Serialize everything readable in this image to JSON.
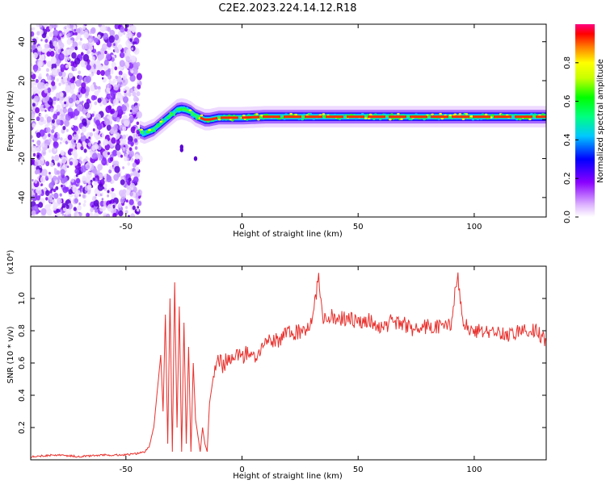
{
  "title": "C2E2.2023.224.14.12.R18",
  "colors": {
    "snr_line": "#e8302c",
    "ridge": "#ff2a00"
  },
  "chart_data": [
    {
      "type": "heatmap",
      "xlabel": "Height of straight line (km)",
      "ylabel": "Frequency (Hz)",
      "xlim": [
        -91,
        131
      ],
      "ylim": [
        -50,
        49
      ],
      "x_ticks": [
        -50,
        0,
        50,
        100
      ],
      "y_ticks": [
        -40,
        -20,
        0,
        20,
        40
      ],
      "x_tick_labels": [
        "-50",
        "0",
        "50",
        "100"
      ],
      "y_tick_labels": [
        "-40",
        "-20",
        "0",
        "20",
        "40"
      ],
      "colorbar": {
        "label": "Normalized spectral amplitude",
        "range": [
          0,
          1
        ],
        "ticks": [
          0.0,
          0.2,
          0.4,
          0.6,
          0.8
        ],
        "tick_labels": [
          "0.0",
          "0.2",
          "0.4",
          "0.6",
          "0.8"
        ]
      },
      "noise_region_x": [
        -91,
        -44
      ],
      "ridge": {
        "x": [
          -44,
          -42,
          -40,
          -38,
          -36,
          -34,
          -32,
          -30,
          -28,
          -26,
          -24,
          -22,
          -20,
          -18,
          -16,
          -14,
          -12,
          -10,
          -5,
          0,
          10,
          20,
          30,
          40,
          50,
          60,
          70,
          80,
          90,
          100,
          110,
          120,
          131
        ],
        "y": [
          -6,
          -7,
          -6,
          -5,
          -3,
          -1,
          1,
          3,
          5,
          5.5,
          5,
          4,
          2,
          1,
          0,
          0,
          0.5,
          1,
          1,
          1,
          1.5,
          1.5,
          1.5,
          1.5,
          1.5,
          1.5,
          1.5,
          1.5,
          1.5,
          1.5,
          1.5,
          1.5,
          1.5
        ]
      },
      "grid": false
    },
    {
      "type": "line",
      "xlabel": "Height of straight line (km)",
      "ylabel": "SNR (10 * v/v)",
      "y_multiplier": "(x10⁴)",
      "xlim": [
        -91,
        131
      ],
      "ylim": [
        0,
        1.2
      ],
      "x_ticks": [
        -50,
        0,
        50,
        100
      ],
      "y_ticks": [
        0.2,
        0.4,
        0.6,
        0.8,
        1.0
      ],
      "x_tick_labels": [
        "-50",
        "0",
        "50",
        "100"
      ],
      "y_tick_labels": [
        "0.2",
        "0.4",
        "0.6",
        "0.8",
        "1.0"
      ],
      "series": [
        {
          "x": [
            -91,
            -80,
            -70,
            -60,
            -50,
            -45,
            -42,
            -40,
            -38,
            -36,
            -35,
            -34,
            -33,
            -32,
            -31,
            -30,
            -29,
            -28,
            -27,
            -26,
            -25,
            -24,
            -23,
            -22,
            -21,
            -20,
            -19,
            -18,
            -17,
            -16,
            -15,
            -14,
            -12,
            -10,
            -8,
            -6,
            -4,
            -2,
            0,
            3,
            6,
            10,
            15,
            20,
            25,
            30,
            33,
            35,
            38,
            40,
            45,
            50,
            55,
            60,
            65,
            70,
            75,
            80,
            85,
            90,
            93,
            95,
            100,
            105,
            110,
            115,
            120,
            125,
            128,
            131
          ],
          "y": [
            0.02,
            0.03,
            0.02,
            0.03,
            0.03,
            0.04,
            0.05,
            0.08,
            0.2,
            0.5,
            0.65,
            0.3,
            0.9,
            0.1,
            1.0,
            0.05,
            1.1,
            0.2,
            0.95,
            0.05,
            0.85,
            0.1,
            0.7,
            0.05,
            0.6,
            0.25,
            0.15,
            0.05,
            0.2,
            0.1,
            0.05,
            0.35,
            0.55,
            0.62,
            0.58,
            0.64,
            0.6,
            0.66,
            0.63,
            0.68,
            0.65,
            0.72,
            0.74,
            0.78,
            0.8,
            0.84,
            1.12,
            0.88,
            0.9,
            0.86,
            0.88,
            0.85,
            0.86,
            0.82,
            0.86,
            0.84,
            0.8,
            0.83,
            0.82,
            0.85,
            1.15,
            0.84,
            0.8,
            0.79,
            0.8,
            0.77,
            0.8,
            0.82,
            0.78,
            0.74
          ]
        }
      ],
      "grid": false
    }
  ]
}
